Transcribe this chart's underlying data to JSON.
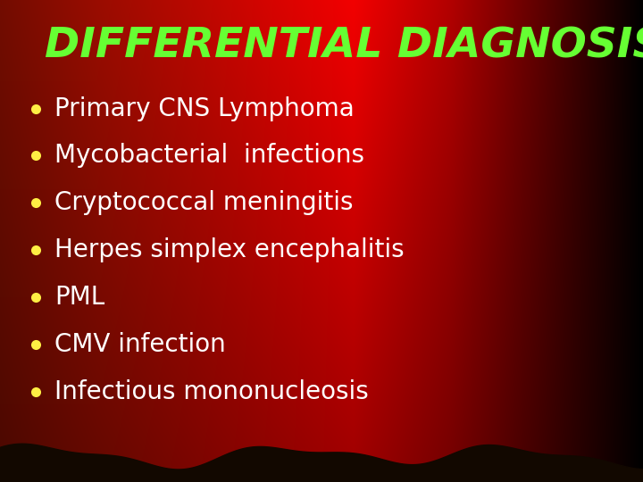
{
  "title": "DIFFERENTIAL DIAGNOSIS",
  "title_color": "#66ff33",
  "title_fontsize": 34,
  "title_fontweight": "bold",
  "bullet_color": "#ffee44",
  "text_color": "#ffffff",
  "text_fontsize": 20,
  "items": [
    "Primary CNS Lymphoma",
    "Mycobacterial  infections",
    "Cryptococcal meningitis",
    "Herpes simplex encephalitis",
    "PML",
    "CMV infection",
    "Infectious mononucleosis"
  ],
  "figsize": [
    7.2,
    5.4
  ],
  "dpi": 100
}
